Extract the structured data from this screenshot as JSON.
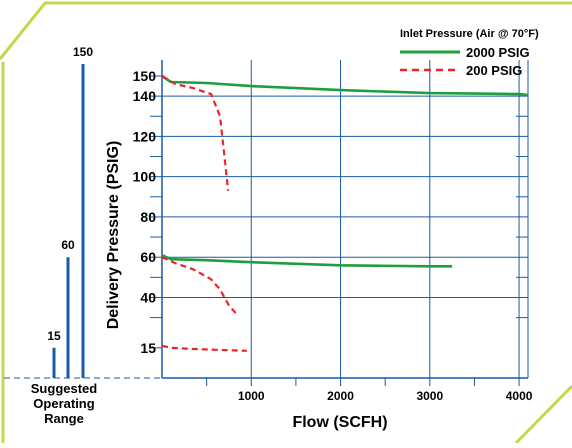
{
  "colors": {
    "frame": "#c4d84a",
    "axis": "#1a5aa8",
    "grid": "#1a5aa8",
    "green": "#1f9e3e",
    "red": "#e8262a"
  },
  "chart_data": {
    "type": "line",
    "title": "",
    "xlabel": "Flow (SCFH)",
    "ylabel": "Delivery Pressure (PSIG)",
    "xlim": [
      0,
      4100
    ],
    "ylim": [
      0,
      150
    ],
    "x_ticks": [
      1000,
      2000,
      3000,
      4000
    ],
    "y_ticks": [
      15,
      40,
      60,
      80,
      100,
      120,
      140,
      150
    ],
    "grid": true,
    "legend": {
      "title": "Inlet Pressure (Air @ 70°F)",
      "placement": "top-right",
      "entries": [
        {
          "label": "2000 PSIG",
          "color": "#1f9e3e",
          "dash": "solid"
        },
        {
          "label": "200 PSIG",
          "color": "#e8262a",
          "dash": "dashed"
        }
      ]
    },
    "series": [
      {
        "name": "2000 PSIG",
        "inlet": "2000 PSIG",
        "setpoint": 150,
        "color": "#1f9e3e",
        "dash": "solid",
        "points": [
          [
            0,
            150
          ],
          [
            100,
            147
          ],
          [
            500,
            146.5
          ],
          [
            1000,
            145
          ],
          [
            2000,
            143
          ],
          [
            3000,
            141.5
          ],
          [
            4000,
            141
          ],
          [
            4100,
            140.5
          ]
        ]
      },
      {
        "name": "200 PSIG",
        "inlet": "200 PSIG",
        "setpoint": 150,
        "color": "#e8262a",
        "dash": "dashed",
        "points": [
          [
            0,
            150
          ],
          [
            150,
            146
          ],
          [
            350,
            144
          ],
          [
            550,
            141
          ],
          [
            650,
            130
          ],
          [
            700,
            110
          ],
          [
            740,
            93
          ]
        ]
      },
      {
        "name": "2000 PSIG",
        "inlet": "2000 PSIG",
        "setpoint": 60,
        "color": "#1f9e3e",
        "dash": "solid",
        "points": [
          [
            0,
            61
          ],
          [
            100,
            59
          ],
          [
            500,
            58.5
          ],
          [
            1000,
            57.5
          ],
          [
            2000,
            56
          ],
          [
            3000,
            55.5
          ],
          [
            3250,
            55.5
          ]
        ]
      },
      {
        "name": "200 PSIG",
        "inlet": "200 PSIG",
        "setpoint": 60,
        "color": "#e8262a",
        "dash": "dashed",
        "points": [
          [
            0,
            60
          ],
          [
            150,
            57
          ],
          [
            350,
            54
          ],
          [
            550,
            49
          ],
          [
            650,
            44
          ],
          [
            750,
            36
          ],
          [
            850,
            31
          ]
        ]
      },
      {
        "name": "200 PSIG",
        "inlet": "200 PSIG",
        "setpoint": 15,
        "color": "#e8262a",
        "dash": "dashed",
        "points": [
          [
            0,
            16
          ],
          [
            100,
            15
          ],
          [
            300,
            14.5
          ],
          [
            600,
            14
          ],
          [
            950,
            13.5
          ]
        ]
      }
    ],
    "operating_range": {
      "label_lines": [
        "Suggested",
        "Operating",
        "Range"
      ],
      "bars": [
        {
          "label": "15",
          "value": 15
        },
        {
          "label": "60",
          "value": 60
        },
        {
          "label": "150",
          "value": 150
        }
      ]
    }
  }
}
